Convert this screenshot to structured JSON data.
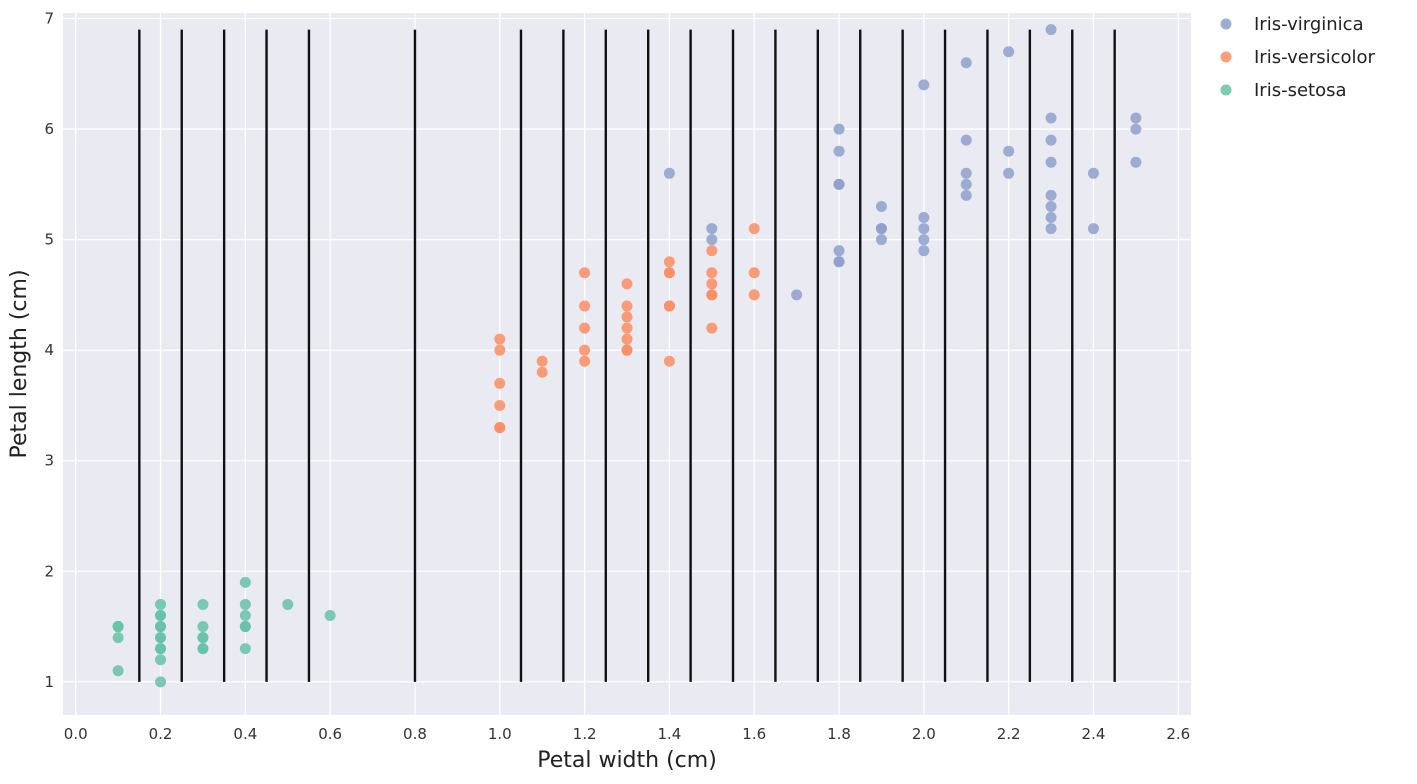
{
  "chart_data": {
    "type": "scatter",
    "title": "",
    "xlabel": "Petal width (cm)",
    "ylabel": "Petal length (cm)",
    "xlim": [
      -0.03,
      2.63
    ],
    "ylim": [
      0.7,
      7.05
    ],
    "xticks": [
      "0.0",
      "0.2",
      "0.4",
      "0.6",
      "0.8",
      "1.0",
      "1.2",
      "1.4",
      "1.6",
      "1.8",
      "2.0",
      "2.2",
      "2.4",
      "2.6"
    ],
    "yticks": [
      "1",
      "2",
      "3",
      "4",
      "5",
      "6",
      "7"
    ],
    "grid": true,
    "background": "#eaeaf2",
    "legend_position": "outside-top-right",
    "vertical_lines": {
      "color": "#111111",
      "y_range": [
        1.0,
        6.9
      ],
      "x": [
        0.15,
        0.25,
        0.35,
        0.45,
        0.55,
        0.8,
        1.05,
        1.15,
        1.25,
        1.35,
        1.45,
        1.55,
        1.65,
        1.75,
        1.85,
        1.95,
        2.05,
        2.15,
        2.25,
        2.35,
        2.45
      ]
    },
    "series": [
      {
        "name": "Iris-virginica",
        "color": "#8da0cb",
        "points": [
          [
            1.4,
            5.6
          ],
          [
            1.5,
            5.1
          ],
          [
            1.5,
            5.0
          ],
          [
            1.7,
            4.5
          ],
          [
            1.8,
            6.0
          ],
          [
            1.8,
            5.8
          ],
          [
            1.8,
            5.5
          ],
          [
            1.8,
            5.5
          ],
          [
            1.8,
            4.9
          ],
          [
            1.8,
            4.8
          ],
          [
            1.8,
            4.8
          ],
          [
            1.9,
            5.3
          ],
          [
            1.9,
            5.1
          ],
          [
            1.9,
            5.1
          ],
          [
            1.9,
            5.0
          ],
          [
            2.0,
            6.4
          ],
          [
            2.0,
            5.2
          ],
          [
            2.0,
            5.1
          ],
          [
            2.0,
            5.0
          ],
          [
            2.0,
            4.9
          ],
          [
            2.1,
            6.6
          ],
          [
            2.1,
            5.9
          ],
          [
            2.1,
            5.6
          ],
          [
            2.1,
            5.5
          ],
          [
            2.1,
            5.4
          ],
          [
            2.2,
            6.7
          ],
          [
            2.2,
            5.8
          ],
          [
            2.2,
            5.6
          ],
          [
            2.3,
            6.9
          ],
          [
            2.3,
            6.1
          ],
          [
            2.3,
            5.9
          ],
          [
            2.3,
            5.7
          ],
          [
            2.3,
            5.4
          ],
          [
            2.3,
            5.3
          ],
          [
            2.3,
            5.2
          ],
          [
            2.3,
            5.1
          ],
          [
            2.4,
            5.6
          ],
          [
            2.4,
            5.1
          ],
          [
            2.5,
            6.1
          ],
          [
            2.5,
            6.0
          ],
          [
            2.5,
            5.7
          ]
        ]
      },
      {
        "name": "Iris-versicolor",
        "color": "#fc8d62",
        "points": [
          [
            1.0,
            4.1
          ],
          [
            1.0,
            4.0
          ],
          [
            1.0,
            3.7
          ],
          [
            1.0,
            3.5
          ],
          [
            1.0,
            3.3
          ],
          [
            1.0,
            3.3
          ],
          [
            1.1,
            3.9
          ],
          [
            1.1,
            3.8
          ],
          [
            1.2,
            4.7
          ],
          [
            1.2,
            4.4
          ],
          [
            1.2,
            4.2
          ],
          [
            1.2,
            4.0
          ],
          [
            1.2,
            3.9
          ],
          [
            1.3,
            4.6
          ],
          [
            1.3,
            4.4
          ],
          [
            1.3,
            4.3
          ],
          [
            1.3,
            4.2
          ],
          [
            1.3,
            4.1
          ],
          [
            1.3,
            4.0
          ],
          [
            1.3,
            4.0
          ],
          [
            1.4,
            4.8
          ],
          [
            1.4,
            4.7
          ],
          [
            1.4,
            4.7
          ],
          [
            1.4,
            4.4
          ],
          [
            1.4,
            4.4
          ],
          [
            1.4,
            3.9
          ],
          [
            1.5,
            4.9
          ],
          [
            1.5,
            4.7
          ],
          [
            1.5,
            4.6
          ],
          [
            1.5,
            4.5
          ],
          [
            1.5,
            4.5
          ],
          [
            1.5,
            4.2
          ],
          [
            1.6,
            5.1
          ],
          [
            1.6,
            4.7
          ],
          [
            1.6,
            4.5
          ]
        ]
      },
      {
        "name": "Iris-setosa",
        "color": "#66c2a5",
        "points": [
          [
            0.1,
            1.5
          ],
          [
            0.1,
            1.5
          ],
          [
            0.1,
            1.4
          ],
          [
            0.1,
            1.1
          ],
          [
            0.2,
            1.7
          ],
          [
            0.2,
            1.6
          ],
          [
            0.2,
            1.6
          ],
          [
            0.2,
            1.5
          ],
          [
            0.2,
            1.5
          ],
          [
            0.2,
            1.4
          ],
          [
            0.2,
            1.4
          ],
          [
            0.2,
            1.3
          ],
          [
            0.2,
            1.3
          ],
          [
            0.2,
            1.2
          ],
          [
            0.2,
            1.0
          ],
          [
            0.3,
            1.7
          ],
          [
            0.3,
            1.5
          ],
          [
            0.3,
            1.4
          ],
          [
            0.3,
            1.4
          ],
          [
            0.3,
            1.3
          ],
          [
            0.3,
            1.3
          ],
          [
            0.4,
            1.9
          ],
          [
            0.4,
            1.7
          ],
          [
            0.4,
            1.6
          ],
          [
            0.4,
            1.5
          ],
          [
            0.4,
            1.5
          ],
          [
            0.4,
            1.3
          ],
          [
            0.5,
            1.7
          ],
          [
            0.6,
            1.6
          ]
        ]
      }
    ]
  }
}
